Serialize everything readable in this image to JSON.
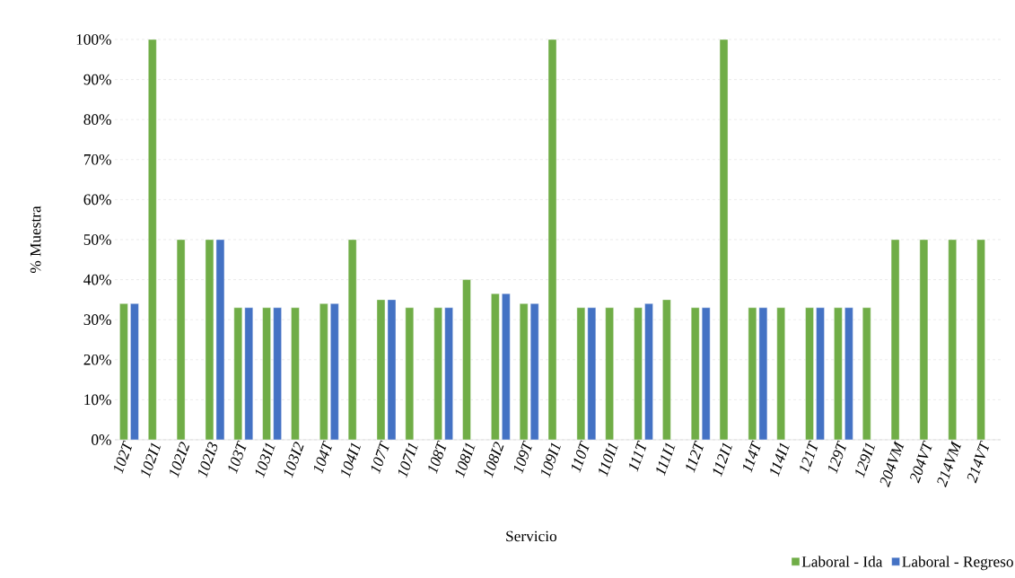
{
  "chart_data": {
    "type": "bar",
    "xlabel": "Servicio",
    "ylabel": "% Muestra",
    "categories": [
      "102T",
      "102I1",
      "102I2",
      "102I3",
      "103T",
      "103I1",
      "103I2",
      "104T",
      "104I1",
      "107T",
      "107I1",
      "108T",
      "108I1",
      "108I2",
      "109T",
      "109I1",
      "110T",
      "110I1",
      "111T",
      "111I1",
      "112T",
      "112I1",
      "114T",
      "114I1",
      "121T",
      "129T",
      "129I1",
      "204VM",
      "204VT",
      "214VM",
      "214VT"
    ],
    "series": [
      {
        "name": "Laboral - Ida",
        "color": "#70ad47",
        "values": [
          34,
          100,
          50,
          50,
          33,
          33,
          33,
          34,
          50,
          35,
          33,
          33,
          40,
          36.5,
          34,
          100,
          33,
          33,
          33,
          35,
          33,
          100,
          33,
          33,
          33,
          33,
          33,
          50,
          50,
          50,
          50
        ]
      },
      {
        "name": "Laboral - Regreso",
        "color": "#4472c4",
        "values": [
          34,
          null,
          null,
          50,
          33,
          33,
          null,
          34,
          null,
          35,
          null,
          33,
          null,
          36.5,
          34,
          null,
          33,
          null,
          34,
          null,
          33,
          null,
          33,
          null,
          33,
          33,
          null,
          null,
          null,
          null,
          null
        ]
      }
    ],
    "ylim": [
      0,
      100
    ],
    "yticks": [
      {
        "value": 0,
        "label": "0%"
      },
      {
        "value": 10,
        "label": "10%"
      },
      {
        "value": 20,
        "label": "20%"
      },
      {
        "value": 30,
        "label": "30%"
      },
      {
        "value": 40,
        "label": "40%"
      },
      {
        "value": 50,
        "label": "50%"
      },
      {
        "value": 60,
        "label": "60%"
      },
      {
        "value": 70,
        "label": "70%"
      },
      {
        "value": 80,
        "label": "80%"
      },
      {
        "value": 90,
        "label": "90%"
      },
      {
        "value": 100,
        "label": "100%"
      }
    ],
    "grid": "y",
    "legend": "bottom right"
  }
}
